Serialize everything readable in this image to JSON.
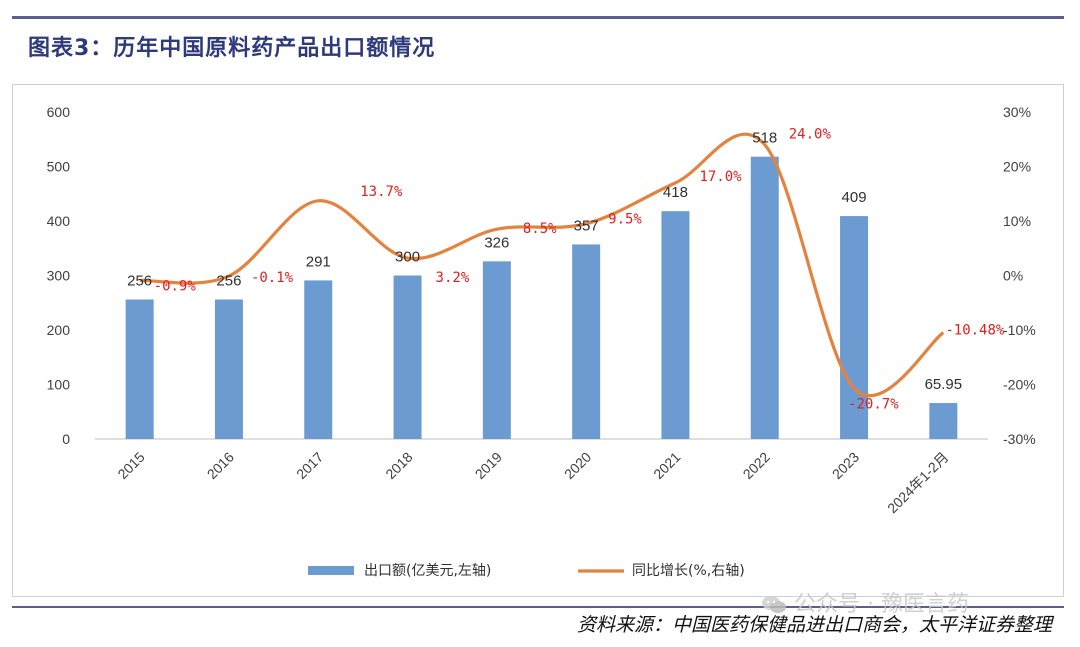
{
  "title": "图表3：历年中国原料药产品出口额情况",
  "source": "资料来源：中国医药保健品进出口商会，太平洋证券整理",
  "watermark": "公众号 · 豫医言药",
  "watermark_logo_icon": "wechat-logo-icon",
  "colors": {
    "bar": "#6b9bd1",
    "line": "#e3833d",
    "label_red": "#e0201e",
    "rule": "#5b5f8f"
  },
  "chart_data": {
    "type": "bar+line",
    "categories": [
      "2015",
      "2016",
      "2017",
      "2018",
      "2019",
      "2020",
      "2021",
      "2022",
      "2023",
      "2024年1-2月"
    ],
    "series": [
      {
        "name": "出口额(亿美元,左轴)",
        "type": "bar",
        "axis": "left",
        "values": [
          256,
          256,
          291,
          300,
          326,
          357,
          418,
          518,
          409,
          65.95
        ],
        "labels": [
          "256",
          "256",
          "291",
          "300",
          "326",
          "357",
          "418",
          "518",
          "409",
          "65.95"
        ]
      },
      {
        "name": "同比增长(%,右轴)",
        "type": "line",
        "axis": "right",
        "smooth": true,
        "values": [
          -0.9,
          -0.1,
          13.7,
          3.2,
          8.5,
          9.5,
          17.0,
          24.0,
          -20.7,
          -10.48
        ],
        "labels": [
          "-0.9%",
          "-0.1%",
          "13.7%",
          "3.2%",
          "8.5%",
          "9.5%",
          "17.0%",
          "24.0%",
          "-20.7%",
          "-10.48%"
        ]
      }
    ],
    "y_left": {
      "min": 0,
      "max": 600,
      "ticks": [
        "0",
        "100",
        "200",
        "300",
        "400",
        "500",
        "600"
      ]
    },
    "y_right": {
      "min": -30,
      "max": 30,
      "ticks": [
        "-30%",
        "-20%",
        "-10%",
        "0%",
        "10%",
        "20%",
        "30%"
      ]
    },
    "grid": false,
    "legend_position": "bottom"
  }
}
